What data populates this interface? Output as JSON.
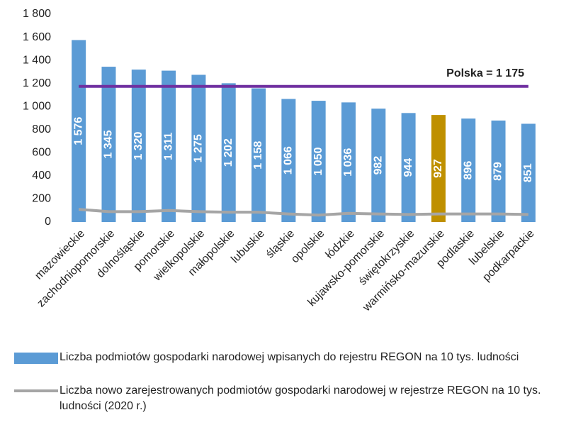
{
  "chart_data": {
    "type": "bar",
    "categories": [
      "mazowieckie",
      "zachodniopomorskie",
      "dolnośląskie",
      "pomorskie",
      "wielkopolskie",
      "małopolskie",
      "lubuskie",
      "śląskie",
      "opolskie",
      "łódzkie",
      "kujawsko-pomorskie",
      "świętokrzyskie",
      "warmińsko-mazurskie",
      "podlaskie",
      "lubelskie",
      "podkarpackie"
    ],
    "series": [
      {
        "name": "Liczba podmiotów gospodarki narodowej wpisanych do rejestru REGON na 10 tys. ludności",
        "type": "bar",
        "color": "#5b9bd5",
        "colors": [
          "#5b9bd5",
          "#5b9bd5",
          "#5b9bd5",
          "#5b9bd5",
          "#5b9bd5",
          "#5b9bd5",
          "#5b9bd5",
          "#5b9bd5",
          "#5b9bd5",
          "#5b9bd5",
          "#5b9bd5",
          "#5b9bd5",
          "#bf9000",
          "#5b9bd5",
          "#5b9bd5",
          "#5b9bd5"
        ],
        "values": [
          1576,
          1345,
          1320,
          1311,
          1275,
          1202,
          1158,
          1066,
          1050,
          1036,
          982,
          944,
          927,
          896,
          879,
          851
        ],
        "value_labels": [
          "1 576",
          "1 345",
          "1 320",
          "1 311",
          "1 275",
          "1 202",
          "1 158",
          "1 066",
          "1 050",
          "1 036",
          "982",
          "944",
          "927",
          "896",
          "879",
          "851"
        ]
      },
      {
        "name": "Liczba  nowo zarejestrowanych podmiotów gospodarki narodowej w rejestrze REGON na 10 tys. ludności (2020 r.)",
        "type": "line",
        "color": "#a5a5a5",
        "values": [
          110,
          90,
          90,
          100,
          90,
          85,
          85,
          70,
          60,
          75,
          70,
          65,
          70,
          70,
          70,
          65
        ]
      }
    ],
    "reference": {
      "value": 1175,
      "label": "Polska = 1 175",
      "color": "#7030a0"
    },
    "ylim": [
      0,
      1800
    ],
    "yticks": [
      0,
      200,
      400,
      600,
      800,
      {
        "value": 1000,
        "label": "1 000"
      },
      {
        "value": 1200,
        "label": "1 200"
      },
      {
        "value": 1400,
        "label": "1 400"
      },
      {
        "value": 1600,
        "label": "1 600"
      },
      {
        "value": 1800,
        "label": "1 800"
      }
    ],
    "grid": false
  }
}
